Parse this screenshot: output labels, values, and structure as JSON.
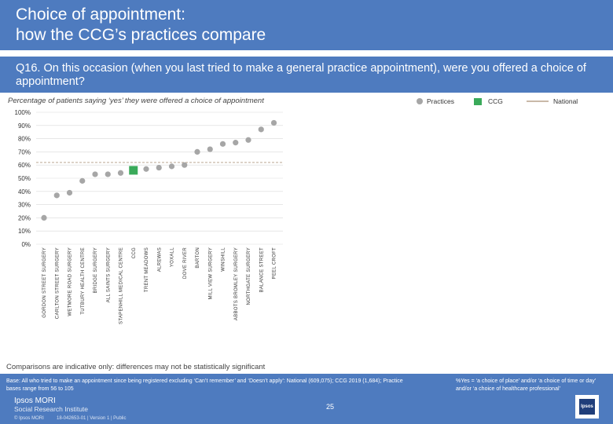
{
  "header": {
    "title_line1": "Choice of appointment:",
    "title_line2": "how the CCG’s practices compare",
    "question": "Q16. On this occasion (when you last tried to make a general practice appointment), were you offered a choice of appointment?"
  },
  "chart_subtitle": "Percentage of patients saying ‘yes’ they were offered a choice of appointment",
  "legend": {
    "practices": "Practices",
    "ccg": "CCG",
    "national": "National"
  },
  "chart_data": {
    "type": "scatter",
    "title": "Percentage of patients saying ‘yes’ they were offered a choice of appointment",
    "y_ticks": [
      "100%",
      "90%",
      "80%",
      "70%",
      "60%",
      "50%",
      "40%",
      "30%",
      "20%",
      "10%",
      "0%"
    ],
    "ylim": [
      0,
      100
    ],
    "national": 62,
    "categories": [
      "GORDON STREET SURGERY",
      "CARLTON STREET SURGERY",
      "WETMORE ROAD SURGERY",
      "TUTBURY HEALTH CENTRE",
      "BRIDGE SURGERY",
      "ALL SAINTS SURGERY",
      "STAPENHILL MEDICAL CENTRE",
      "CCG",
      "TRENT MEADOWS",
      "ALREWAS",
      "YOXALL",
      "DOVE RIVER",
      "BARTON",
      "MILL VIEW SURGERY",
      "WINSHILL",
      "ABBOTS BROMLEY SURGERY",
      "NORTHGATE SURGERY",
      "BALANCE STREET",
      "PEEL CROFT"
    ],
    "values": [
      20,
      37,
      39,
      48,
      53,
      53,
      54,
      56,
      57,
      58,
      59,
      60,
      70,
      72,
      76,
      77,
      79,
      87,
      92
    ],
    "colors": {
      "practice": "#a6a6a6",
      "ccg": "#3aaa5a",
      "national": "#c9b9a8",
      "grid": "#d9d9d9"
    }
  },
  "footer": {
    "comparisons": "Comparisons are indicative only: differences may not be statistically significant",
    "base": "Base: All who tried to make an appointment since being registered excluding ‘Can’t remember’ and ‘Doesn’t apply’: National (609,075); CCG 2019 (1,684); Practice bases range from 56 to 105",
    "note": "%Yes = ‘a choice of place’ and/or ‘a choice of time or day’ and/or ‘a choice of healthcare professional’",
    "logo_line1": "Ipsos MORI",
    "logo_line2": "Social Research Institute",
    "page_number": "25",
    "copyright": "© Ipsos MORI",
    "version": "18-042653-01 | Version 1 | Public",
    "logo_badge": "Ipsos"
  }
}
